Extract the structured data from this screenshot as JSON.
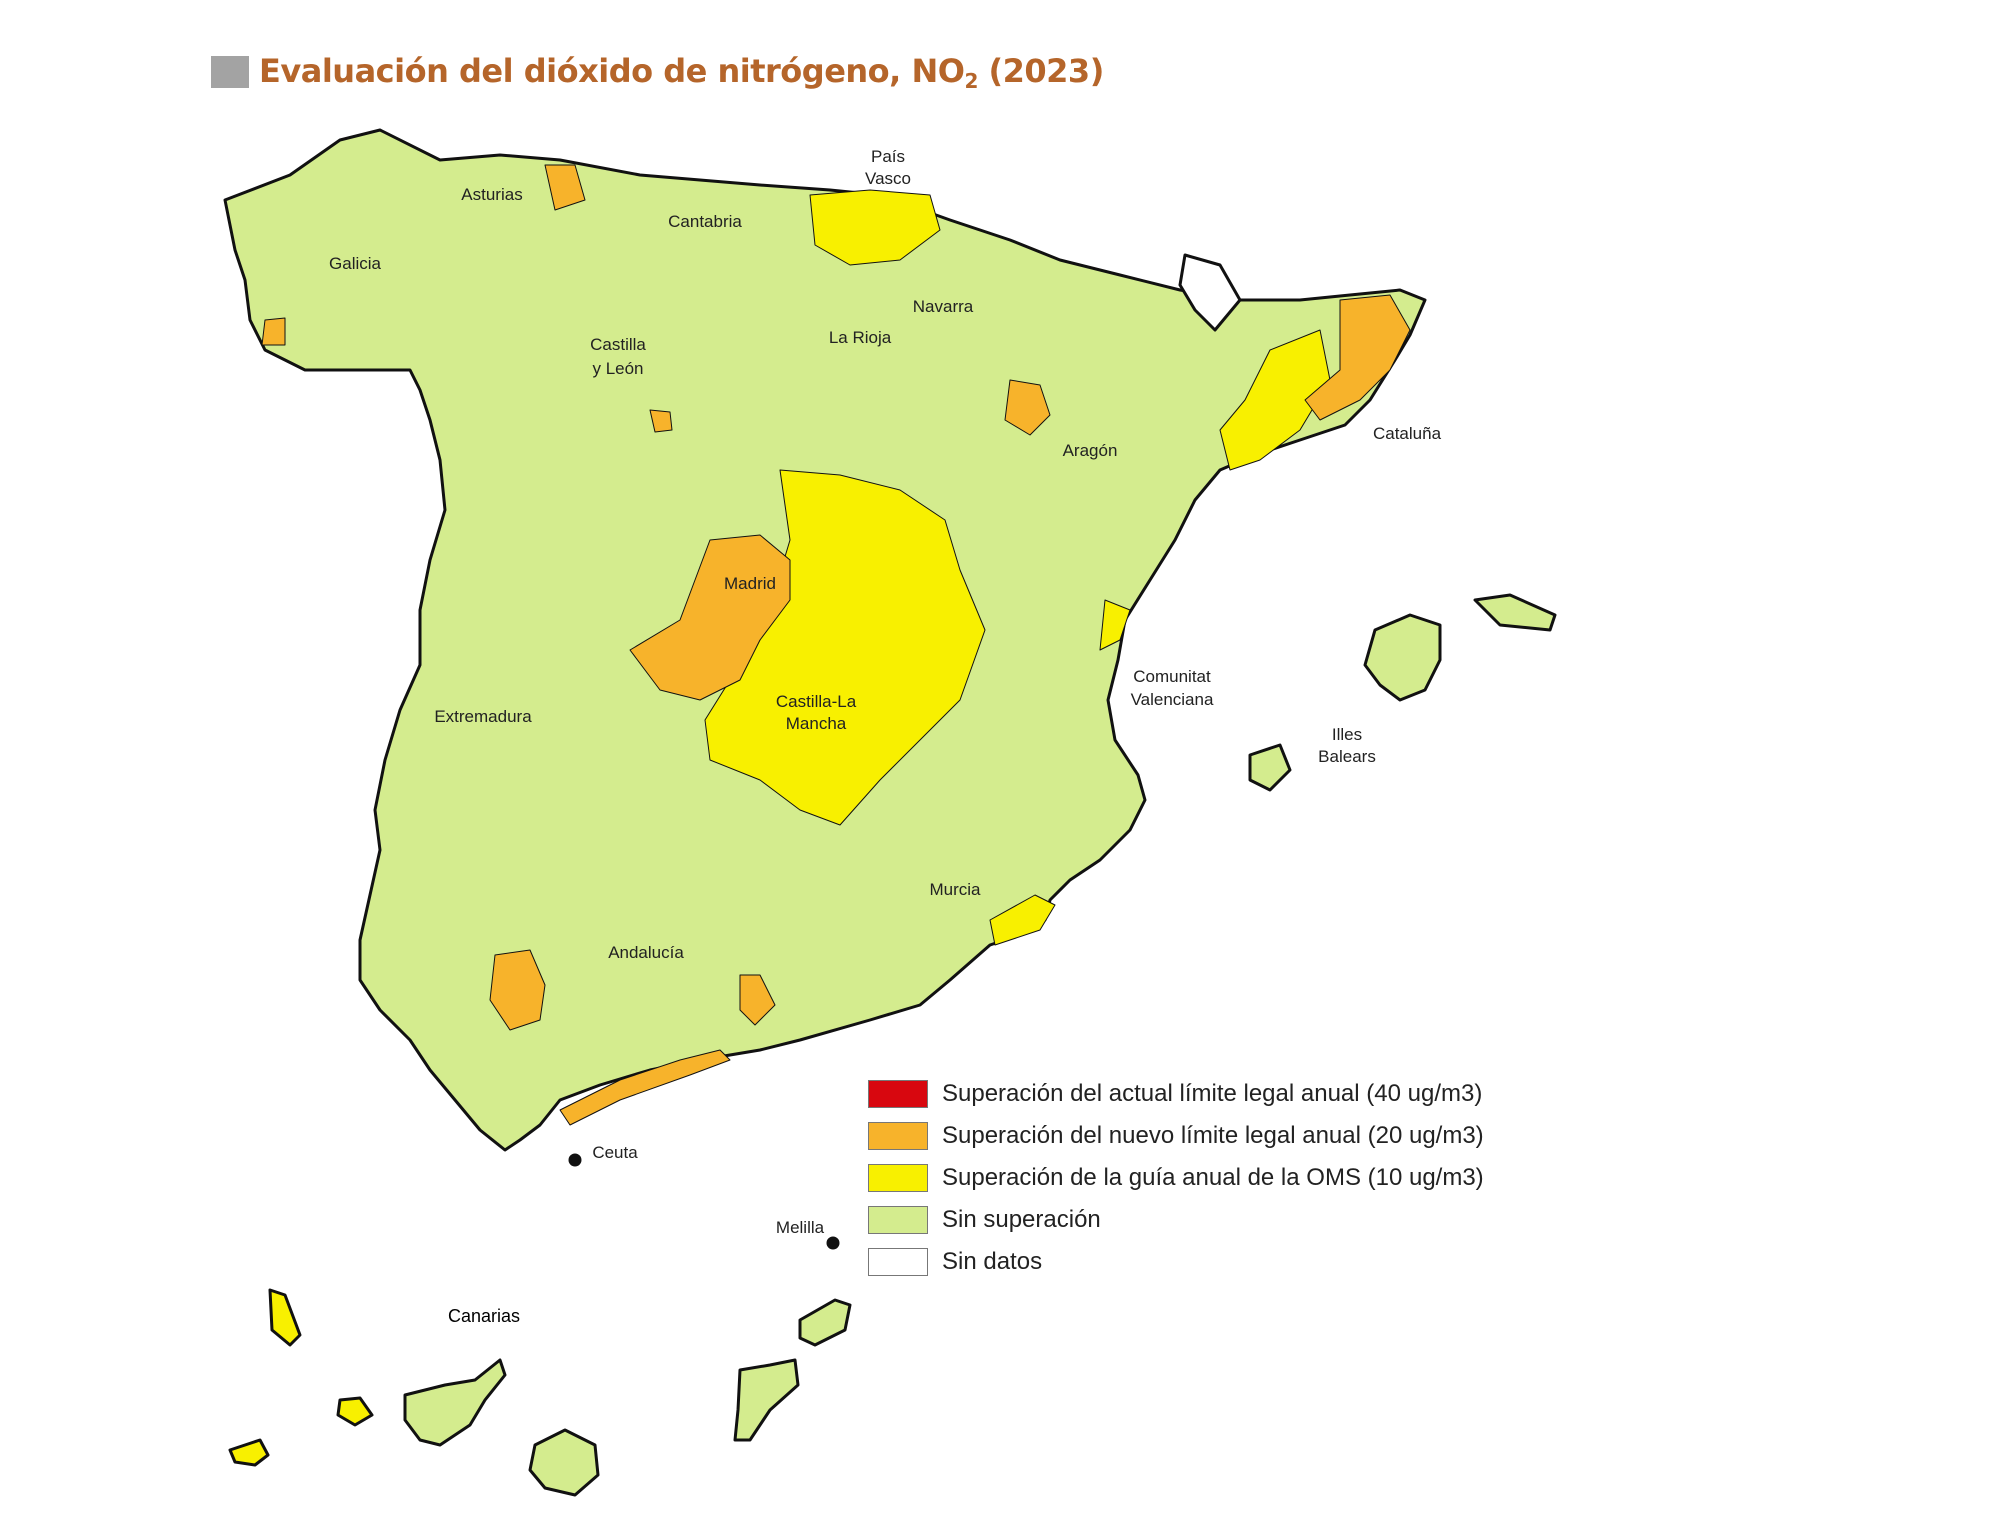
{
  "title": {
    "main": "Evaluación del dióxido de nitrógeno, NO",
    "subscript": "2",
    "year": "(2023)"
  },
  "colors": {
    "title": "#b5652a",
    "no_exceed": "#d4ec8e",
    "who_guide": "#f8f000",
    "new_limit": "#f7b32b",
    "current_limit": "#d8070f",
    "no_data": "#ffffff",
    "border": "#111111"
  },
  "regions": {
    "galicia": "Galicia",
    "asturias": "Asturias",
    "cantabria": "Cantabria",
    "pais_vasco_1": "País",
    "pais_vasco_2": "Vasco",
    "navarra": "Navarra",
    "la_rioja": "La Rioja",
    "castilla_leon_1": "Castilla",
    "castilla_leon_2": "y León",
    "aragon": "Aragón",
    "cataluna": "Cataluña",
    "madrid": "Madrid",
    "extremadura": "Extremadura",
    "castilla_mancha_1": "Castilla-La",
    "castilla_mancha_2": "Mancha",
    "valenciana_1": "Comunitat",
    "valenciana_2": "Valenciana",
    "baleares_1": "Illes",
    "baleares_2": "Balears",
    "murcia": "Murcia",
    "andalucia": "Andalucía",
    "ceuta": "Ceuta",
    "melilla": "Melilla",
    "canarias": "Canarias"
  },
  "legend": [
    {
      "label": "Superación del actual límite legal anual (40 ug/m3)",
      "color": "#d8070f"
    },
    {
      "label": "Superación del nuevo límite legal anual (20 ug/m3)",
      "color": "#f7b32b"
    },
    {
      "label": "Superación de la guía anual de la OMS (10 ug/m3)",
      "color": "#f8f000"
    },
    {
      "label": "Sin superación",
      "color": "#d4ec8e"
    },
    {
      "label": "Sin datos",
      "color": "#ffffff"
    }
  ]
}
